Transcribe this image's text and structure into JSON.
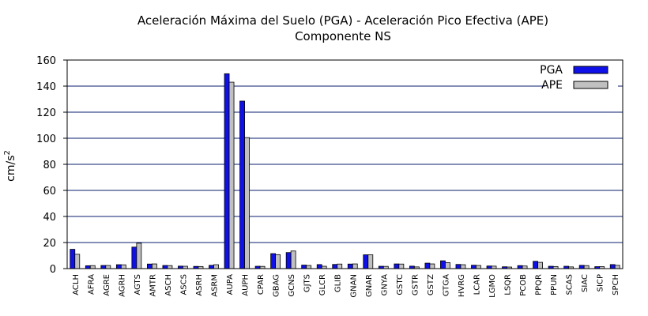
{
  "chart_data": {
    "type": "bar",
    "title": "Aceleración Máxima del Suelo (PGA) -  Aceleración Pico Efectiva (APE)",
    "subtitle": "Componente NS",
    "xlabel": "",
    "ylabel_base": "cm/s",
    "ylabel_exp": "2",
    "ylim": [
      0,
      160
    ],
    "yticks": [
      "0",
      "20",
      "40",
      "60",
      "80",
      "100",
      "120",
      "140",
      "160"
    ],
    "grid": true,
    "legend_position": "top-right",
    "categories": [
      "ACLH",
      "AFRA",
      "AGRE",
      "AGRH",
      "AGTS",
      "AMTR",
      "ASCH",
      "ASCS",
      "ASRH",
      "ASRM",
      "AUPA",
      "AUPH",
      "CPAR",
      "GBAG",
      "GCNS",
      "GJTS",
      "GLCR",
      "GLIB",
      "GNAN",
      "GNAR",
      "GNYA",
      "GSTC",
      "GSTR",
      "GSTZ",
      "GTGA",
      "HVRG",
      "LCAR",
      "LGMO",
      "LSQR",
      "PCOB",
      "PPQR",
      "PPUN",
      "SCAS",
      "SIAC",
      "SICP",
      "SPCH"
    ],
    "series": [
      {
        "name": "PGA",
        "color": "#1010e8",
        "values": [
          14.8,
          2.2,
          2.4,
          3.0,
          16.5,
          3.5,
          2.4,
          1.9,
          1.7,
          2.5,
          149.5,
          128.5,
          1.8,
          11.5,
          12.3,
          2.7,
          3.1,
          3.2,
          3.5,
          10.6,
          1.8,
          3.6,
          1.9,
          4.2,
          6.0,
          3.2,
          2.6,
          2.0,
          1.4,
          2.3,
          5.6,
          1.8,
          1.8,
          2.5,
          1.5,
          3.1
        ]
      },
      {
        "name": "APE",
        "color": "#c0c0c0",
        "values": [
          11.0,
          2.3,
          2.4,
          2.9,
          19.5,
          3.6,
          2.3,
          1.8,
          1.6,
          3.0,
          143.0,
          100.5,
          1.7,
          10.7,
          13.5,
          2.4,
          1.8,
          3.5,
          3.6,
          10.6,
          1.7,
          3.5,
          1.3,
          3.6,
          4.6,
          3.0,
          2.4,
          1.9,
          1.2,
          2.0,
          4.8,
          1.6,
          1.3,
          2.3,
          1.5,
          2.5
        ]
      }
    ]
  }
}
